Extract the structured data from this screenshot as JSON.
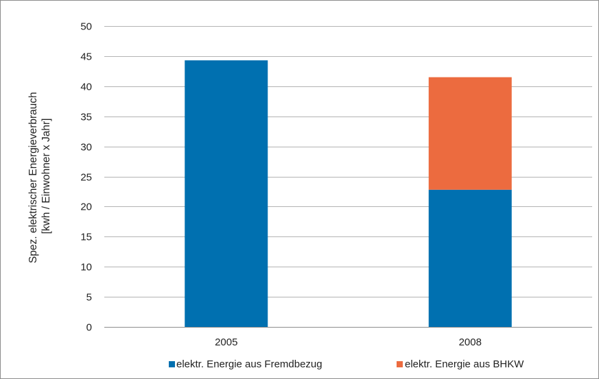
{
  "chart_data": {
    "type": "bar",
    "stacked": true,
    "categories": [
      "2005",
      "2008"
    ],
    "series": [
      {
        "name": "elektr. Energie aus Fremdbezug",
        "values": [
          44.3,
          22.8
        ],
        "color": "#0070b0"
      },
      {
        "name": "elektr. Energie aus BHKW",
        "values": [
          0,
          18.7
        ],
        "color": "#ec6b3f"
      }
    ],
    "ylabel_lines": [
      "Spez. elektrischer Energieverbrauch",
      "[kwh / Einwohner x Jahr]"
    ],
    "xlabel": "",
    "ylim": [
      0,
      50
    ],
    "yticks": [
      0,
      5,
      10,
      15,
      20,
      25,
      30,
      35,
      40,
      45,
      50
    ],
    "grid": true,
    "legend_position": "bottom"
  }
}
